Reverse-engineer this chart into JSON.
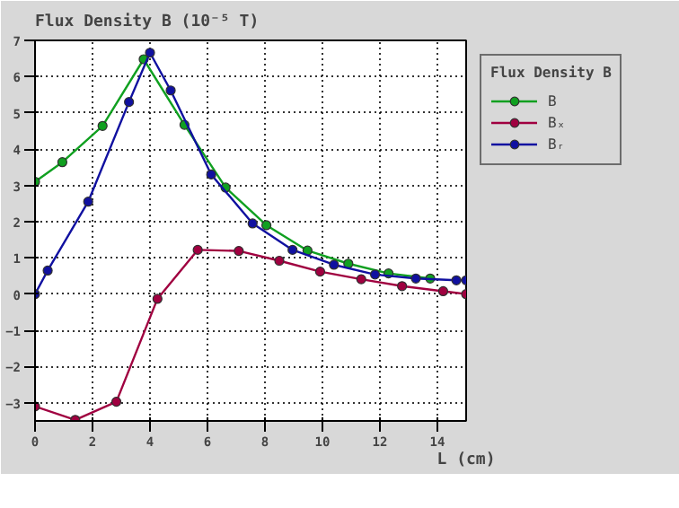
{
  "chart_data": {
    "type": "line",
    "title": "Flux Density B (10⁻⁵ T)",
    "xlabel": "L (cm)",
    "legend_title": "Flux Density B",
    "xlim": [
      0,
      15
    ],
    "ylim": [
      -3.5,
      7
    ],
    "xticks": [
      0,
      2,
      4,
      6,
      8,
      10,
      12,
      14
    ],
    "yticks": [
      -3,
      -2,
      -1,
      0,
      1,
      2,
      3,
      4,
      5,
      6,
      7
    ],
    "grid": true,
    "legend": "right",
    "marker": "circle",
    "line_style": "solid",
    "series": [
      {
        "name": "B",
        "color": "#10a020",
        "x": [
          0,
          0.95,
          2.35,
          3.78,
          5.2,
          6.63,
          8.05,
          9.48,
          10.9,
          12.3,
          13.75
        ],
        "values": [
          3.1,
          3.64,
          4.64,
          6.48,
          4.67,
          2.94,
          1.9,
          1.2,
          0.84,
          0.57,
          0.43
        ]
      },
      {
        "name": "Bₓ",
        "color": "#a00040",
        "x": [
          0,
          1.4,
          2.83,
          4.26,
          5.66,
          7.09,
          8.5,
          9.92,
          11.35,
          12.77,
          14.2,
          15
        ],
        "values": [
          -3.1,
          -3.47,
          -2.97,
          -0.13,
          1.22,
          1.19,
          0.92,
          0.62,
          0.41,
          0.22,
          0.08,
          0.0
        ]
      },
      {
        "name": "Bᵣ",
        "color": "#1010a0",
        "x": [
          0,
          0.44,
          1.85,
          3.27,
          4.0,
          4.72,
          6.13,
          7.57,
          8.96,
          10.4,
          11.83,
          13.25,
          14.66,
          15
        ],
        "values": [
          0.0,
          0.65,
          2.55,
          5.3,
          6.66,
          5.62,
          3.3,
          1.95,
          1.22,
          0.81,
          0.54,
          0.43,
          0.38,
          0.38
        ]
      }
    ]
  }
}
